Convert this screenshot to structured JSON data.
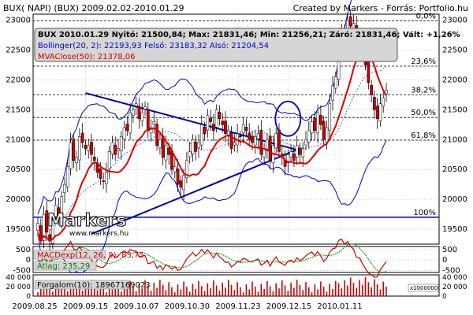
{
  "header": {
    "left": "BUX( NAPI)   (BUX)   2009.02.02-2010.01.29",
    "right": "Created by Markers - Forrás: Portfolio.hu"
  },
  "info_box": {
    "line1": "BUX 2010.01.29 Nyitó: 21500,84; Max: 21831,46; Min: 21256,21; Záró: 21831,46; Vált: +1,26%",
    "line2": "Bollinger(20, 2): 22193,93  Felső: 23183,32  Alsó: 21204,54",
    "line3": "MVAClose(50): 21378,06"
  },
  "macd_label": "MACDexp(12, 26, 9): 83,75",
  "atlag_label": "Átlag: 235,29",
  "volume_label": "Forgalom(10): 18967169023",
  "volume_unit": "x1000000",
  "logo": {
    "text": "Markers",
    "site": "www.markers.hu"
  },
  "colors": {
    "price_up": "#ffffff",
    "price_down": "#cc0000",
    "ma50": "#dd0000",
    "bollinger": "#0000cc",
    "trendline": "#0000aa",
    "grid": "#c8c8c8",
    "fib": "#000000",
    "bg": "#ffffff"
  },
  "chart_data": [
    {
      "type": "candlestick",
      "title": "BUX( NAPI)   (BUX)   2009.02.02-2010.01.29",
      "x_ticks": [
        "2009.08.25",
        "2009.09.15",
        "2009.10.07",
        "2009.10.30",
        "2009.11.23",
        "2009.12.15",
        "2010.01.11"
      ],
      "y_ticks": [
        19500,
        20000,
        20500,
        21000,
        21500,
        22000,
        22500,
        23000
      ],
      "ylim": [
        19250,
        23100
      ],
      "fib_levels": [
        {
          "label": "0,0%",
          "value": 22990
        },
        {
          "label": "23,6%",
          "value": 22230
        },
        {
          "label": "38,2%",
          "value": 21750
        },
        {
          "label": "50,0%",
          "value": 21370
        },
        {
          "label": "61,8%",
          "value": 20990
        },
        {
          "label": "100%",
          "value": 19700
        }
      ],
      "close": [
        19600,
        19350,
        19750,
        19450,
        19300,
        19650,
        19900,
        19700,
        20050,
        20250,
        20550,
        20950,
        20650,
        20700,
        21050,
        20950,
        20850,
        20900,
        20750,
        20650,
        20450,
        20350,
        20300,
        20450,
        20800,
        20950,
        20750,
        20850,
        21050,
        21200,
        21150,
        21450,
        21500,
        21600,
        21350,
        21450,
        21550,
        21150,
        21200,
        21300,
        20900,
        21000,
        20700,
        20900,
        20750,
        20500,
        20550,
        20250,
        20200,
        20400,
        20650,
        20800,
        21000,
        20800,
        20950,
        21250,
        21100,
        21400,
        21300,
        21150,
        21500,
        21350,
        21250,
        21100,
        21150,
        20850,
        20950,
        21100,
        21050,
        21250,
        21150,
        21000,
        20950,
        21050,
        21100,
        20750,
        20850,
        21000,
        20650,
        20900,
        21100,
        20800,
        20700,
        20550,
        20750,
        20800,
        20650,
        20900,
        20750,
        20850,
        21000,
        21150,
        21300,
        21150,
        21450,
        21250,
        21000,
        21200,
        21600,
        21900,
        22050,
        22600,
        22800,
        22700,
        23000,
        22900,
        22950,
        22650,
        22750,
        22500,
        22250,
        21950,
        21750,
        21500,
        21350,
        21600,
        21700,
        21831
      ],
      "ma50_series": [
        {
          "name": "MVAClose(50)",
          "last": 21378.06
        }
      ],
      "bollinger": {
        "mid": 22193.93,
        "upper": 23183.32,
        "lower": 21204.54
      },
      "ohlc_last": {
        "open": 21500.84,
        "high": 21831.46,
        "low": 21256.21,
        "close": 21831.46,
        "change": "+1,26%"
      }
    },
    {
      "type": "line",
      "title": "MACDexp(12, 26, 9): 83,75",
      "y_ticks": [
        -500,
        0,
        500
      ],
      "ylim": [
        -600,
        650
      ],
      "series": [
        {
          "name": "MACDexp(12, 26, 9)",
          "last": 83.75
        },
        {
          "name": "Átlag",
          "last": 235.29
        }
      ]
    },
    {
      "type": "bar",
      "title": "Forgalom(10): 18967169023",
      "y_ticks": [
        0,
        20000,
        40000
      ],
      "unit": "x1000000"
    }
  ]
}
